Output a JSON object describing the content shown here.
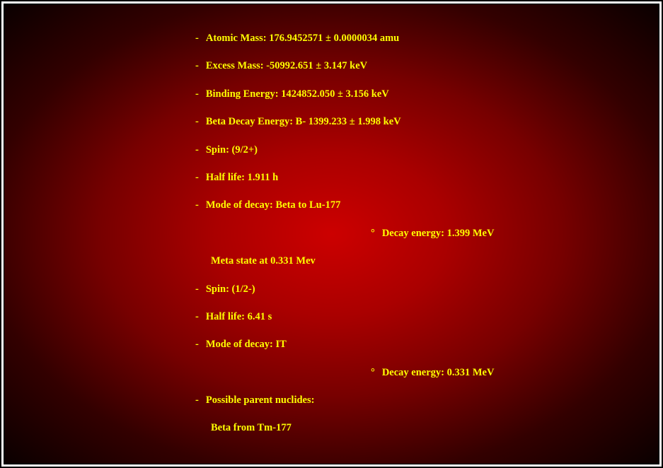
{
  "document": {
    "bullet": "-",
    "sub_bullet": "°",
    "text_color": "#ffff00",
    "background_gradient": {
      "type": "radial",
      "center_color": "#cc0000",
      "edge_color": "#0a0000"
    },
    "font_size": 14.5,
    "font_weight": "bold",
    "items": [
      {
        "text": "Atomic Mass: 176.9452571 ± 0.0000034 amu"
      },
      {
        "text": "Excess Mass: -50992.651 ± 3.147 keV"
      },
      {
        "text": "Binding Energy: 1424852.050 ± 3.156 keV"
      },
      {
        "text": "Beta Decay Energy: B- 1399.233 ± 1.998 keV"
      },
      {
        "text": "Spin: (9/2+)"
      },
      {
        "text": "Half life: 1.911 h"
      },
      {
        "text": "Mode of decay: Beta to Lu-177"
      }
    ],
    "sub_items_1": [
      {
        "text": "Decay energy: 1.399 MeV"
      }
    ],
    "meta_state": "Meta state at 0.331 Mev",
    "items_2": [
      {
        "text": "Spin: (1/2-)"
      },
      {
        "text": "Half life: 6.41 s"
      },
      {
        "text": "Mode of decay: IT"
      }
    ],
    "sub_items_2": [
      {
        "text": "Decay energy: 0.331 MeV"
      }
    ],
    "items_3": [
      {
        "text": "Possible parent nuclides:"
      }
    ],
    "parent_nuclide": "Beta from Tm-177"
  }
}
